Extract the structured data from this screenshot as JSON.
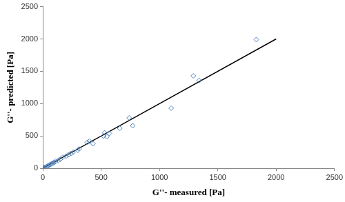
{
  "chart_data": {
    "type": "scatter",
    "x_label": "G''- measured [Pa]",
    "y_label": "G''- predicted [Pa]",
    "xlim": [
      0,
      2500
    ],
    "xticks": [
      0,
      500,
      1000,
      1500,
      2000,
      2500
    ],
    "ylim": [
      0,
      2500
    ],
    "yticks": [
      0,
      500,
      1000,
      1500,
      2000,
      2500
    ],
    "grid": false,
    "series": [
      {
        "type": "scatter",
        "marker": "diamond",
        "color": "#4f81bd",
        "x": [
          0,
          5,
          10,
          20,
          30,
          40,
          50,
          60,
          70,
          80,
          90,
          100,
          110,
          130,
          150,
          170,
          200,
          220,
          240,
          260,
          300,
          310,
          380,
          400,
          430,
          520,
          530,
          550,
          570,
          660,
          740,
          770,
          1100,
          1290,
          1340,
          1830
        ],
        "values": [
          0,
          8,
          12,
          18,
          25,
          35,
          45,
          55,
          65,
          75,
          85,
          95,
          110,
          120,
          140,
          170,
          190,
          210,
          230,
          250,
          280,
          300,
          400,
          420,
          380,
          500,
          550,
          490,
          540,
          620,
          780,
          660,
          930,
          1430,
          1360,
          1990
        ]
      },
      {
        "type": "line",
        "line_style": "solid",
        "color": "#000000",
        "x": [
          0,
          2000
        ],
        "values": [
          0,
          2000
        ]
      }
    ]
  }
}
